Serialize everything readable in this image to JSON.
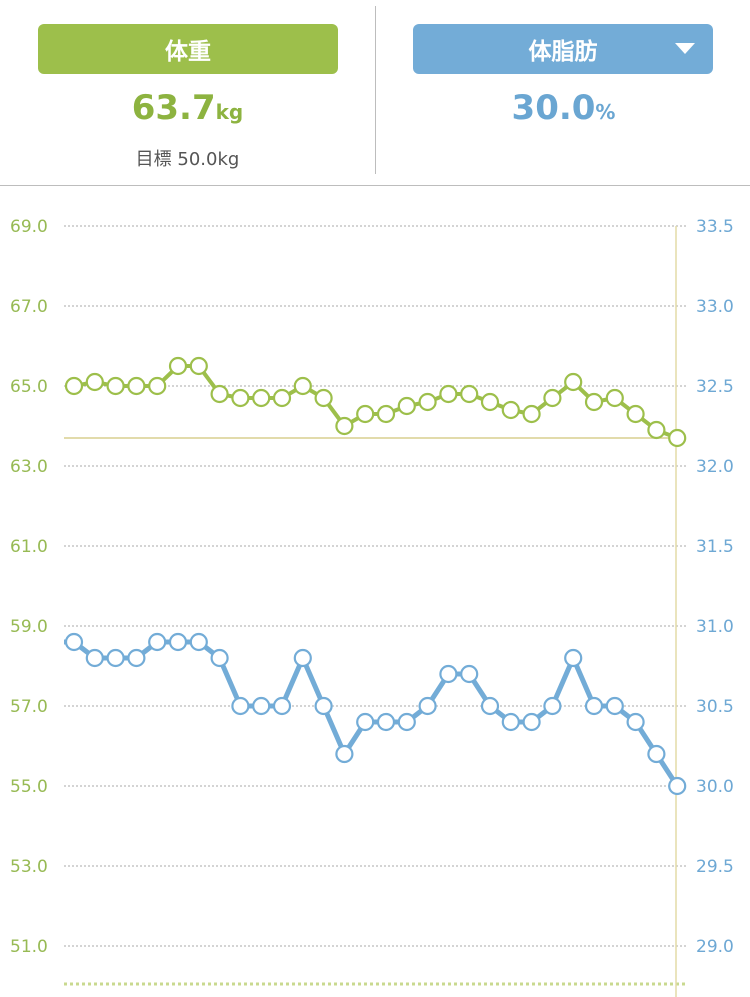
{
  "weight_panel": {
    "label": "体重",
    "value": "63.7",
    "unit": "kg",
    "goal_label": "目標",
    "goal_value": "50.0kg"
  },
  "fat_panel": {
    "label": "体脂肪",
    "value": "30.0",
    "unit": "%",
    "dropdown_icon": "chevron-down-icon"
  },
  "colors": {
    "weight": "#9dbf4b",
    "fat": "#73acd7",
    "grid": "#bdbdbd"
  },
  "chart_data": {
    "type": "line",
    "left_axis": {
      "ticks": [
        "69.0",
        "67.0",
        "65.0",
        "63.0",
        "61.0",
        "59.0",
        "57.0",
        "55.0",
        "53.0",
        "51.0"
      ],
      "range": [
        50.0,
        69.0
      ]
    },
    "right_axis": {
      "ticks": [
        "33.5",
        "33.0",
        "32.5",
        "32.0",
        "31.5",
        "31.0",
        "30.5",
        "30.0",
        "29.5",
        "29.0"
      ],
      "range": [
        28.75,
        33.5
      ]
    },
    "grid": true,
    "reference_line": 63.7,
    "series": [
      {
        "axis": "left",
        "color": "#9dbf4b",
        "values": [
          65.0,
          65.1,
          65.0,
          65.0,
          65.0,
          65.5,
          65.5,
          64.8,
          64.7,
          64.7,
          64.7,
          65.0,
          64.7,
          64.0,
          64.3,
          64.3,
          64.5,
          64.6,
          64.8,
          64.8,
          64.6,
          64.4,
          64.3,
          64.7,
          65.1,
          64.6,
          64.7,
          64.3,
          63.9,
          63.7
        ]
      },
      {
        "axis": "right",
        "color": "#73acd7",
        "values": [
          30.9,
          30.8,
          30.8,
          30.8,
          30.9,
          30.9,
          30.9,
          30.8,
          30.5,
          30.5,
          30.5,
          30.8,
          30.5,
          30.2,
          30.4,
          30.4,
          30.4,
          30.5,
          30.7,
          30.7,
          30.5,
          30.4,
          30.4,
          30.5,
          30.8,
          30.5,
          30.5,
          30.4,
          30.2,
          30.0
        ]
      }
    ]
  }
}
